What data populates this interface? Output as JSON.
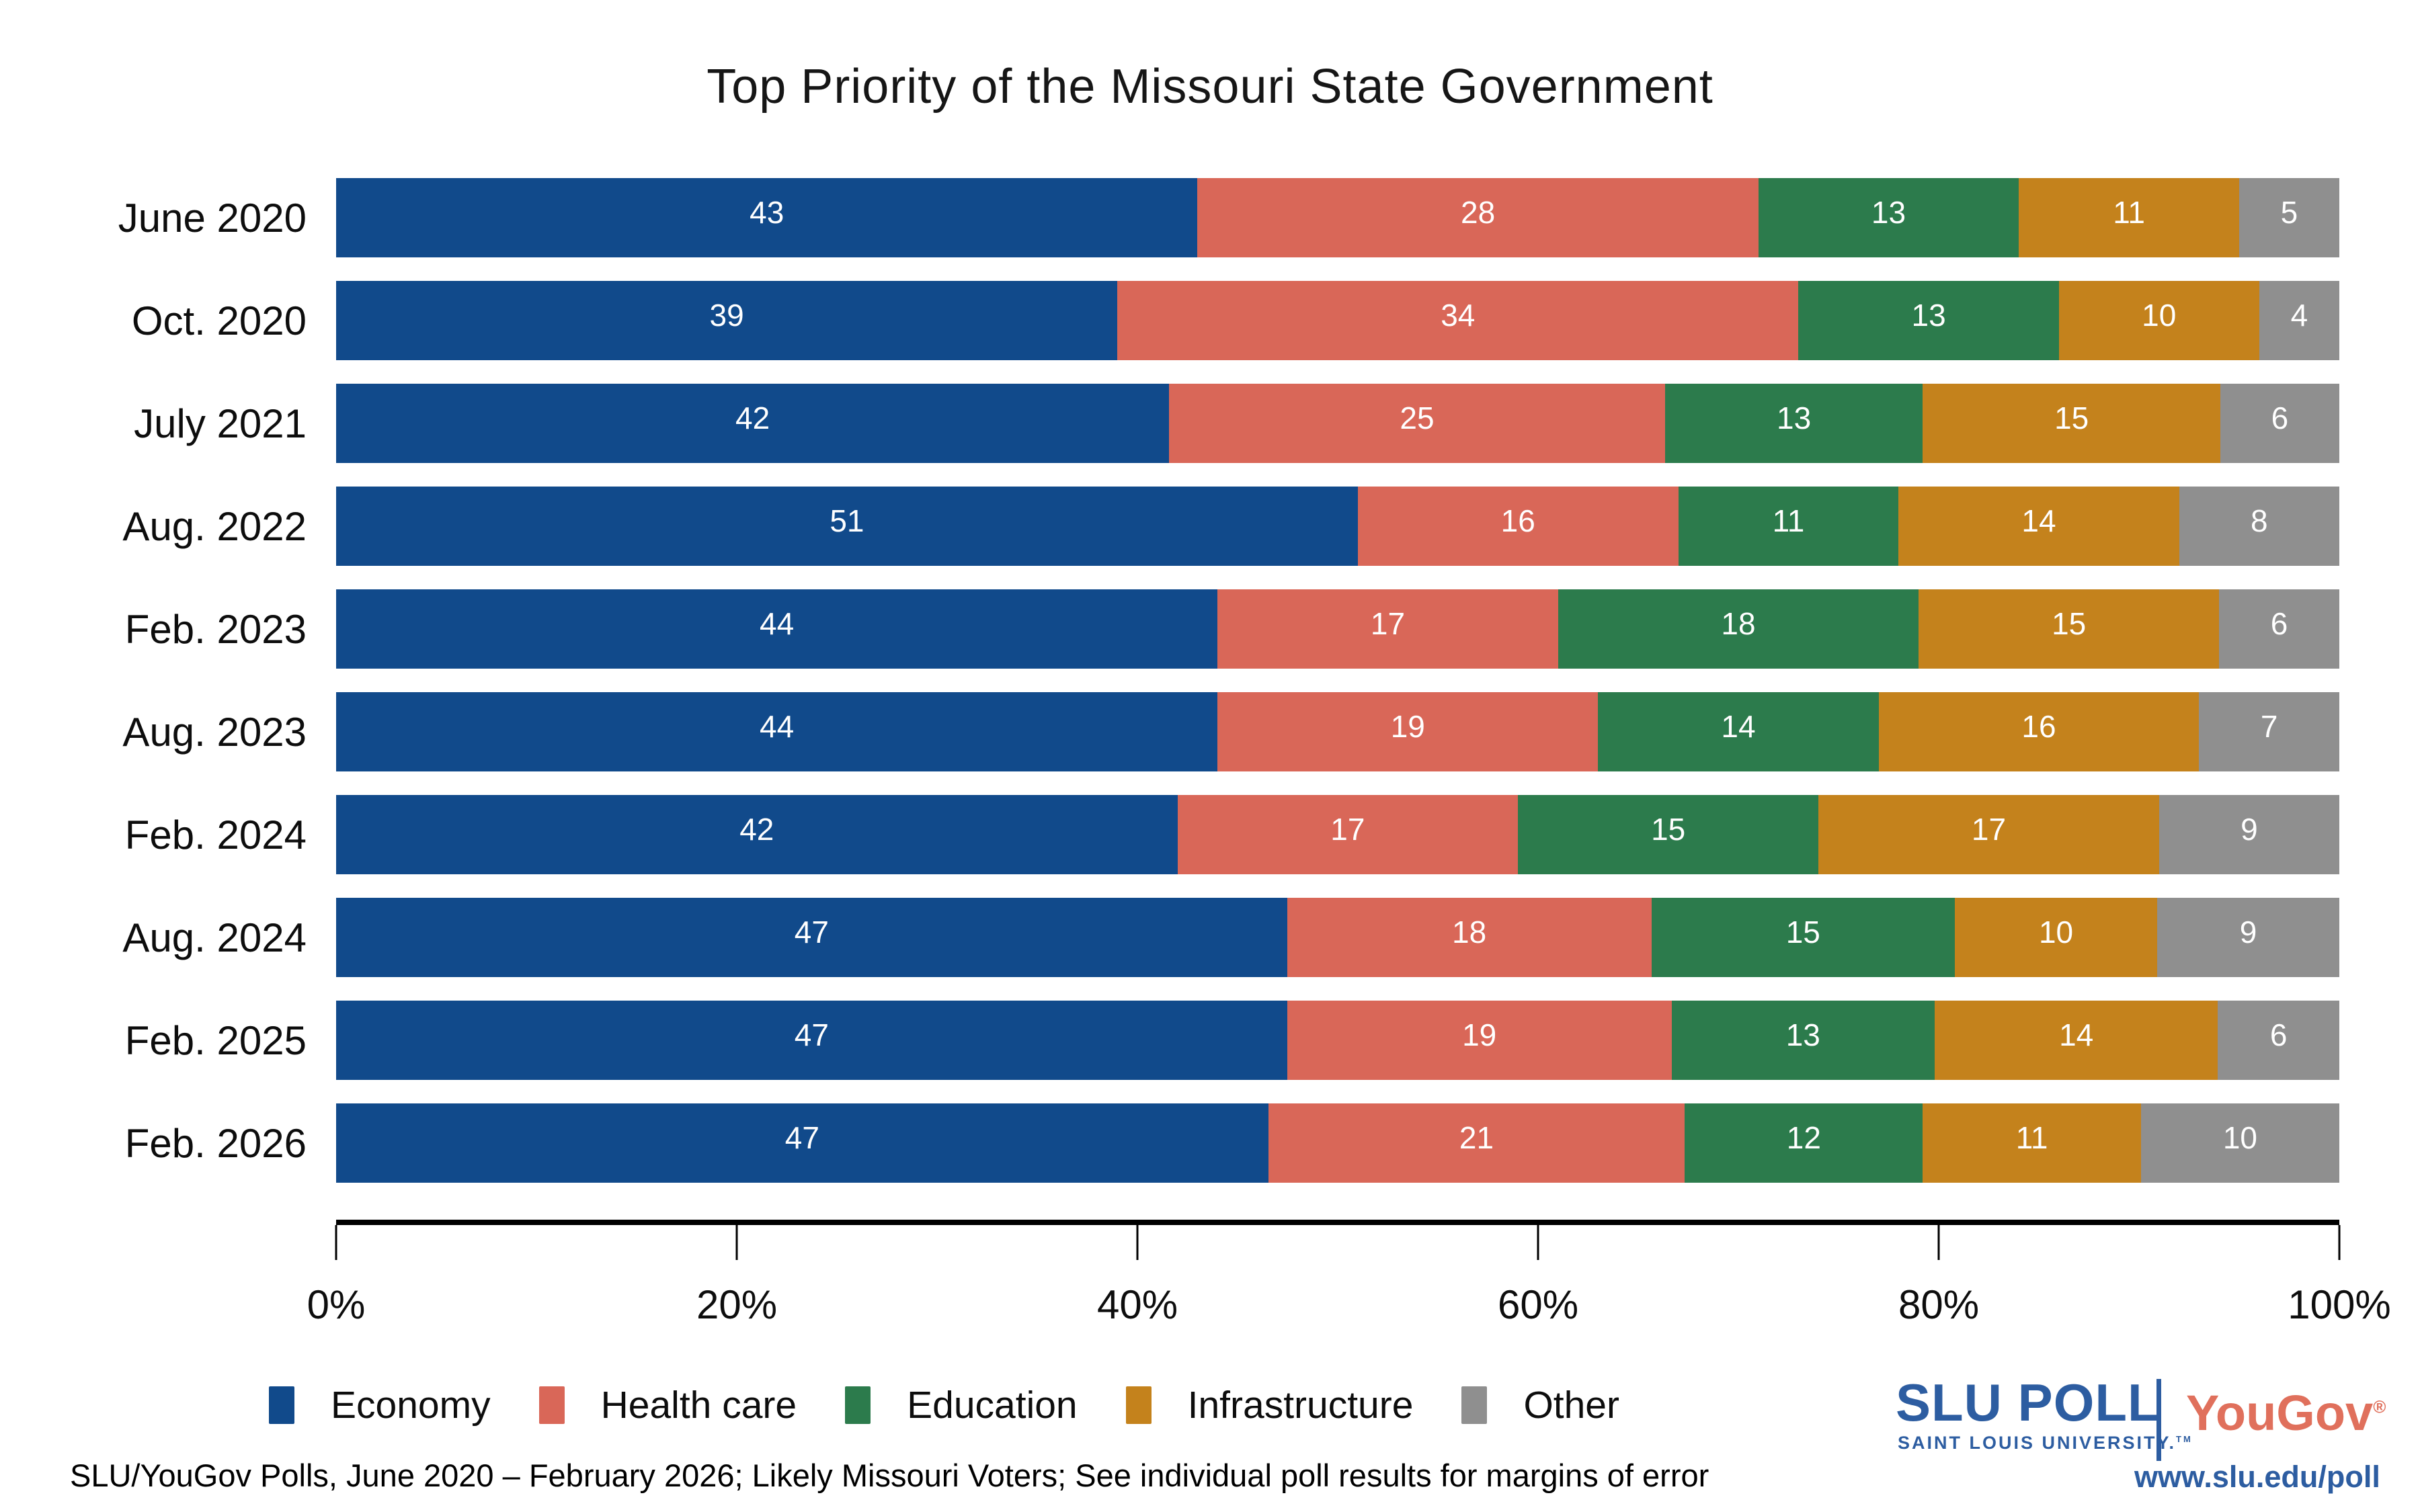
{
  "title": "Top Priority of the Missouri State Government",
  "chart_data": {
    "type": "bar",
    "stacked": true,
    "orientation": "horizontal",
    "title": "Top Priority of the Missouri State Government",
    "categories": [
      "June 2020",
      "Oct. 2020",
      "July 2021",
      "Aug. 2022",
      "Feb. 2023",
      "Aug. 2023",
      "Feb. 2024",
      "Aug. 2024",
      "Feb. 2025",
      "Feb. 2026"
    ],
    "series": [
      {
        "name": "Economy",
        "color": "#114a8b",
        "values": [
          43,
          39,
          42,
          51,
          44,
          44,
          42,
          47,
          47,
          47
        ]
      },
      {
        "name": "Health care",
        "color": "#d96758",
        "values": [
          28,
          34,
          25,
          16,
          17,
          19,
          17,
          18,
          19,
          21
        ]
      },
      {
        "name": "Education",
        "color": "#2c7b4c",
        "values": [
          13,
          13,
          13,
          11,
          18,
          14,
          15,
          15,
          13,
          12
        ]
      },
      {
        "name": "Infrastructure",
        "color": "#c4821c",
        "values": [
          11,
          10,
          15,
          14,
          15,
          16,
          17,
          10,
          14,
          11
        ]
      },
      {
        "name": "Other",
        "color": "#8f8f8f",
        "values": [
          5,
          4,
          6,
          8,
          6,
          7,
          9,
          9,
          6,
          10
        ]
      }
    ],
    "x_tick_labels": [
      "0%",
      "20%",
      "40%",
      "60%",
      "80%",
      "100%"
    ],
    "xlim": [
      0,
      100
    ],
    "value_labels": "inside-white",
    "grid": false,
    "legend_position": "bottom-left"
  },
  "footer": {
    "source_note": "SLU/YouGov Polls, June 2020 – February 2026; Likely Missouri Voters; See individual poll results for margins of error"
  },
  "branding": {
    "slu_poll": "SLU POLL",
    "slu_university": "SAINT LOUIS UNIVERSITY.",
    "slu_tm": "TM",
    "yougov": "YouGov",
    "yougov_reg": "®",
    "url": "www.slu.edu/poll",
    "slu_blue": "#2d5da1",
    "yougov_red": "#e0705c"
  }
}
